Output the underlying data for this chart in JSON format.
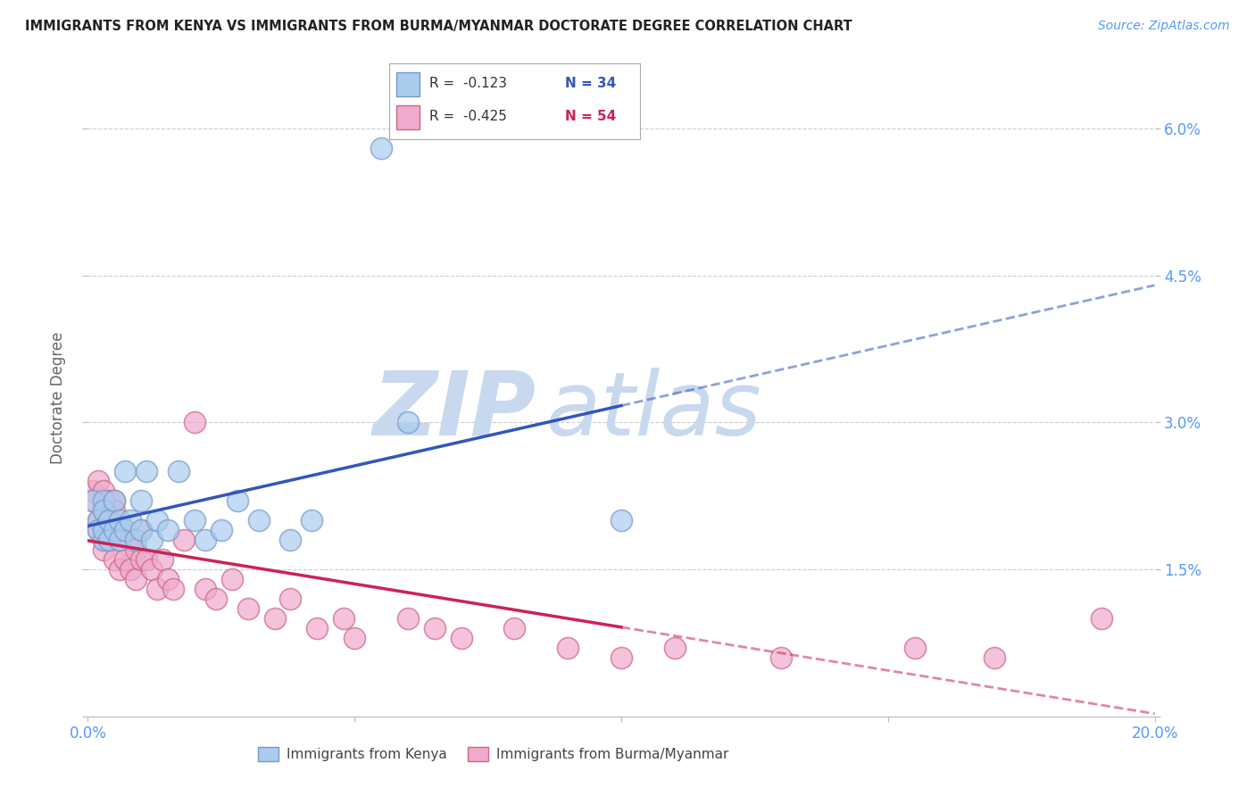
{
  "title": "IMMIGRANTS FROM KENYA VS IMMIGRANTS FROM BURMA/MYANMAR DOCTORATE DEGREE CORRELATION CHART",
  "source": "Source: ZipAtlas.com",
  "tick_color": "#5599ff",
  "ylabel": "Doctorate Degree",
  "xlim": [
    0.0,
    0.2
  ],
  "ylim": [
    0.0,
    0.065
  ],
  "xticks": [
    0.0,
    0.05,
    0.1,
    0.15,
    0.2
  ],
  "xtick_labels": [
    "0.0%",
    "",
    "",
    "",
    "20.0%"
  ],
  "yticks": [
    0.0,
    0.015,
    0.03,
    0.045,
    0.06
  ],
  "right_ytick_labels": [
    "",
    "1.5%",
    "3.0%",
    "4.5%",
    "6.0%"
  ],
  "background_color": "#ffffff",
  "grid_color": "#cccccc",
  "watermark_zip": "ZIP",
  "watermark_atlas": "atlas",
  "watermark_color": "#c8d8ee",
  "kenya_color": "#aaccee",
  "kenya_edge_color": "#7799cc",
  "burma_color": "#f0aacc",
  "burma_edge_color": "#cc6688",
  "trend_kenya_color": "#3355bb",
  "trend_burma_color": "#cc2255",
  "legend_r_kenya": "R =  -0.123",
  "legend_n_kenya": "N = 34",
  "legend_r_burma": "R =  -0.425",
  "legend_n_burma": "N = 54",
  "legend_text_color": "#333333",
  "legend_n_kenya_color": "#3355bb",
  "legend_n_burma_color": "#cc2255",
  "kenya_x": [
    0.001,
    0.002,
    0.002,
    0.003,
    0.003,
    0.003,
    0.003,
    0.004,
    0.004,
    0.005,
    0.005,
    0.006,
    0.006,
    0.007,
    0.007,
    0.008,
    0.009,
    0.01,
    0.01,
    0.011,
    0.012,
    0.013,
    0.015,
    0.017,
    0.02,
    0.022,
    0.025,
    0.028,
    0.032,
    0.038,
    0.042,
    0.055,
    0.06,
    0.1
  ],
  "kenya_y": [
    0.022,
    0.02,
    0.019,
    0.022,
    0.018,
    0.021,
    0.019,
    0.02,
    0.018,
    0.022,
    0.019,
    0.02,
    0.018,
    0.025,
    0.019,
    0.02,
    0.018,
    0.022,
    0.019,
    0.025,
    0.018,
    0.02,
    0.019,
    0.025,
    0.02,
    0.018,
    0.019,
    0.022,
    0.02,
    0.018,
    0.02,
    0.058,
    0.03,
    0.02
  ],
  "burma_x": [
    0.001,
    0.001,
    0.002,
    0.002,
    0.002,
    0.003,
    0.003,
    0.003,
    0.003,
    0.004,
    0.004,
    0.004,
    0.005,
    0.005,
    0.005,
    0.005,
    0.006,
    0.006,
    0.007,
    0.007,
    0.008,
    0.008,
    0.009,
    0.009,
    0.01,
    0.01,
    0.011,
    0.012,
    0.013,
    0.014,
    0.015,
    0.016,
    0.018,
    0.02,
    0.022,
    0.024,
    0.027,
    0.03,
    0.035,
    0.038,
    0.043,
    0.048,
    0.05,
    0.06,
    0.065,
    0.07,
    0.08,
    0.09,
    0.1,
    0.11,
    0.13,
    0.155,
    0.17,
    0.19
  ],
  "burma_y": [
    0.023,
    0.022,
    0.024,
    0.02,
    0.019,
    0.023,
    0.021,
    0.018,
    0.017,
    0.022,
    0.02,
    0.018,
    0.022,
    0.019,
    0.016,
    0.021,
    0.018,
    0.015,
    0.019,
    0.016,
    0.018,
    0.015,
    0.017,
    0.014,
    0.019,
    0.016,
    0.016,
    0.015,
    0.013,
    0.016,
    0.014,
    0.013,
    0.018,
    0.03,
    0.013,
    0.012,
    0.014,
    0.011,
    0.01,
    0.012,
    0.009,
    0.01,
    0.008,
    0.01,
    0.009,
    0.008,
    0.009,
    0.007,
    0.006,
    0.007,
    0.006,
    0.007,
    0.006,
    0.01
  ]
}
